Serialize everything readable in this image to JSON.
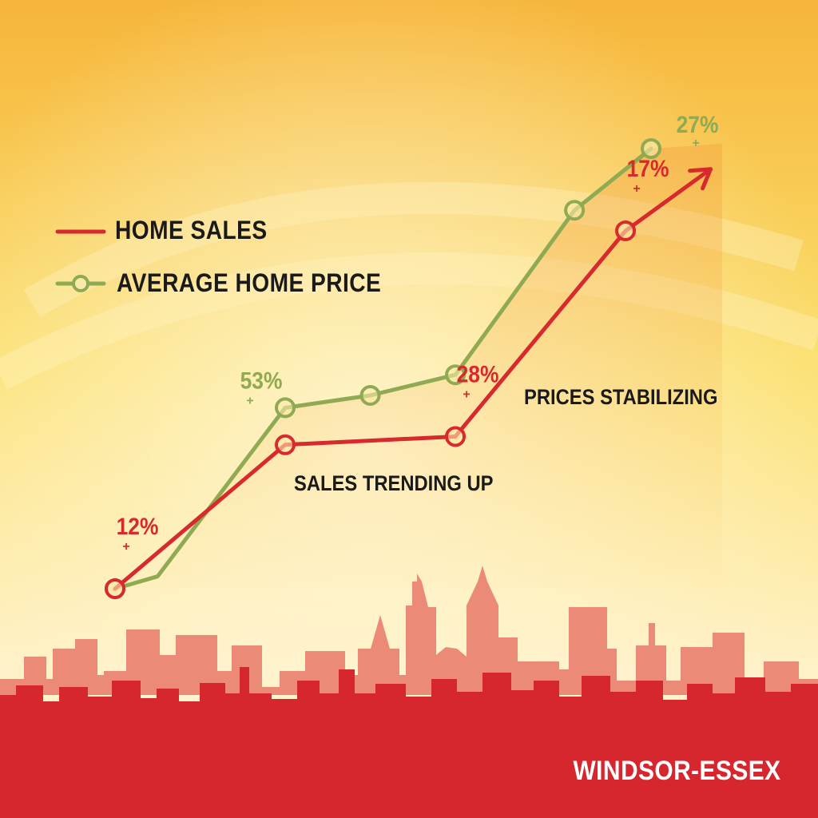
{
  "colors": {
    "home_sales": "#d62a2e",
    "average_home_price": "#8faa52",
    "skyline_front": "#d5272d",
    "skyline_back": "#ec8a78",
    "background_top": "#f6b53a",
    "background_bottom": "#fff1c8"
  },
  "legend": {
    "home_sales": "HOME SALES",
    "average_home_price": "AVERAGE HOME PRICE"
  },
  "annotations": {
    "sales": "SALES TRENDING UP",
    "prices": "PRICES STABILIZING"
  },
  "region": "WINDSOR-ESSEX",
  "chart_data": {
    "type": "line",
    "title": "",
    "xlabel": "",
    "ylabel": "",
    "grid": false,
    "legend_position": "top-left",
    "x": [
      1,
      2,
      3,
      4,
      5,
      6,
      7
    ],
    "series": [
      {
        "name": "HOME SALES",
        "color": "#d62a2e",
        "end_marker": "arrow",
        "points": [
          [
            1,
            8
          ],
          [
            3,
            43
          ],
          [
            5,
            45
          ],
          [
            7,
            95
          ],
          [
            8,
            110
          ]
        ],
        "markers": [
          1,
          3,
          5,
          7
        ],
        "labels": [
          {
            "x": 1,
            "text": "12%",
            "sign": "+"
          },
          {
            "x": 5,
            "text": "28%",
            "sign": "+"
          },
          {
            "x": 7,
            "text": "17%",
            "sign": "+"
          }
        ]
      },
      {
        "name": "AVERAGE HOME PRICE",
        "color": "#8faa52",
        "points": [
          [
            1,
            8
          ],
          [
            1.5,
            11
          ],
          [
            3,
            52
          ],
          [
            4,
            55
          ],
          [
            5,
            60
          ],
          [
            6.4,
            100
          ],
          [
            7.3,
            115
          ]
        ],
        "markers": [
          1,
          3,
          4,
          5,
          6.4,
          7.3
        ],
        "labels": [
          {
            "x": 3,
            "text": "53%",
            "sign": "+"
          },
          {
            "x": 7.3,
            "text": "27%",
            "sign": "+"
          }
        ]
      }
    ]
  }
}
